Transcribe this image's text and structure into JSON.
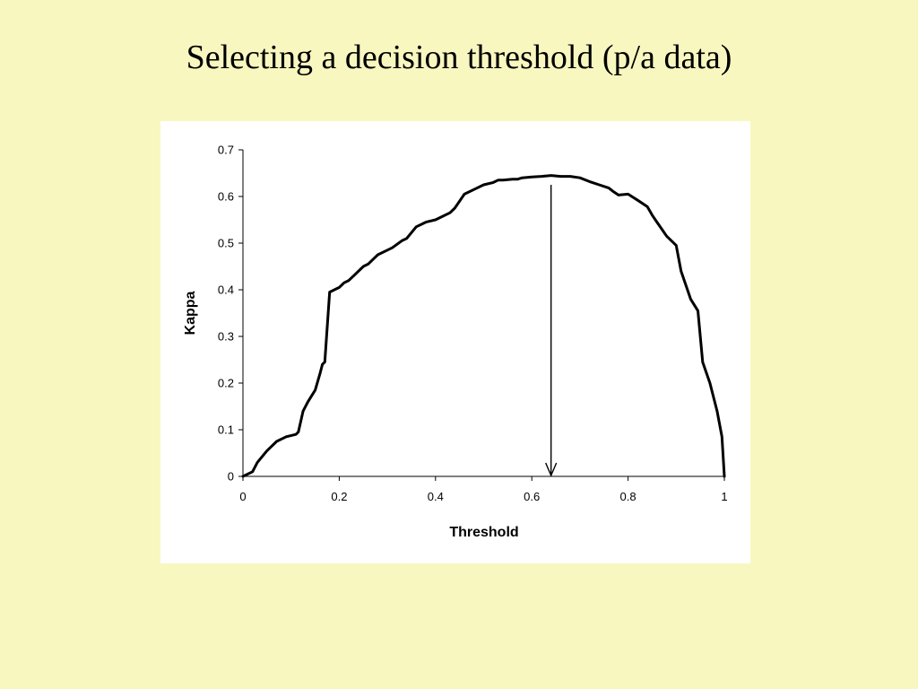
{
  "slide": {
    "title": "Selecting a decision threshold (p/a data)"
  },
  "chart_data": {
    "type": "line",
    "title": "",
    "xlabel": "Threshold",
    "ylabel": "Kappa",
    "xlim": [
      0,
      1
    ],
    "ylim": [
      0,
      0.7
    ],
    "xticks": [
      0,
      0.2,
      0.4,
      0.6,
      0.8,
      1
    ],
    "xtick_labels": [
      "0",
      "0.2",
      "0.4",
      "0.6",
      "0.8",
      "1"
    ],
    "yticks": [
      0,
      0.1,
      0.2,
      0.3,
      0.4,
      0.5,
      0.6,
      0.7
    ],
    "ytick_labels": [
      "0",
      "0.1",
      "0.2",
      "0.3",
      "0.4",
      "0.5",
      "0.6",
      "0.7"
    ],
    "grid": false,
    "legend": "none",
    "line_color": "#000000",
    "series": [
      {
        "x": [
          0,
          0.02,
          0.03,
          0.05,
          0.07,
          0.09,
          0.11,
          0.115,
          0.125,
          0.135,
          0.15,
          0.16,
          0.165,
          0.17,
          0.18,
          0.19,
          0.2,
          0.21,
          0.22,
          0.23,
          0.25,
          0.26,
          0.27,
          0.28,
          0.3,
          0.31,
          0.33,
          0.34,
          0.36,
          0.38,
          0.4,
          0.41,
          0.43,
          0.44,
          0.46,
          0.48,
          0.5,
          0.52,
          0.53,
          0.54,
          0.56,
          0.57,
          0.58,
          0.6,
          0.62,
          0.64,
          0.66,
          0.68,
          0.7,
          0.72,
          0.74,
          0.76,
          0.77,
          0.78,
          0.8,
          0.82,
          0.84,
          0.85,
          0.86,
          0.87,
          0.88,
          0.9,
          0.91,
          0.93,
          0.945,
          0.955,
          0.97,
          0.985,
          0.995,
          1.0
        ],
        "y": [
          0,
          0.01,
          0.03,
          0.055,
          0.075,
          0.085,
          0.09,
          0.095,
          0.14,
          0.16,
          0.185,
          0.22,
          0.24,
          0.245,
          0.395,
          0.4,
          0.405,
          0.415,
          0.42,
          0.43,
          0.45,
          0.455,
          0.465,
          0.475,
          0.485,
          0.49,
          0.505,
          0.51,
          0.535,
          0.545,
          0.55,
          0.555,
          0.565,
          0.575,
          0.605,
          0.615,
          0.625,
          0.63,
          0.635,
          0.635,
          0.637,
          0.637,
          0.64,
          0.642,
          0.643,
          0.645,
          0.643,
          0.643,
          0.64,
          0.632,
          0.625,
          0.618,
          0.61,
          0.603,
          0.605,
          0.592,
          0.578,
          0.56,
          0.545,
          0.53,
          0.515,
          0.495,
          0.44,
          0.38,
          0.355,
          0.245,
          0.2,
          0.14,
          0.085,
          0
        ]
      }
    ],
    "annotation": {
      "type": "arrow",
      "x": 0.64,
      "y_from": 0.625,
      "y_to": 0
    }
  }
}
